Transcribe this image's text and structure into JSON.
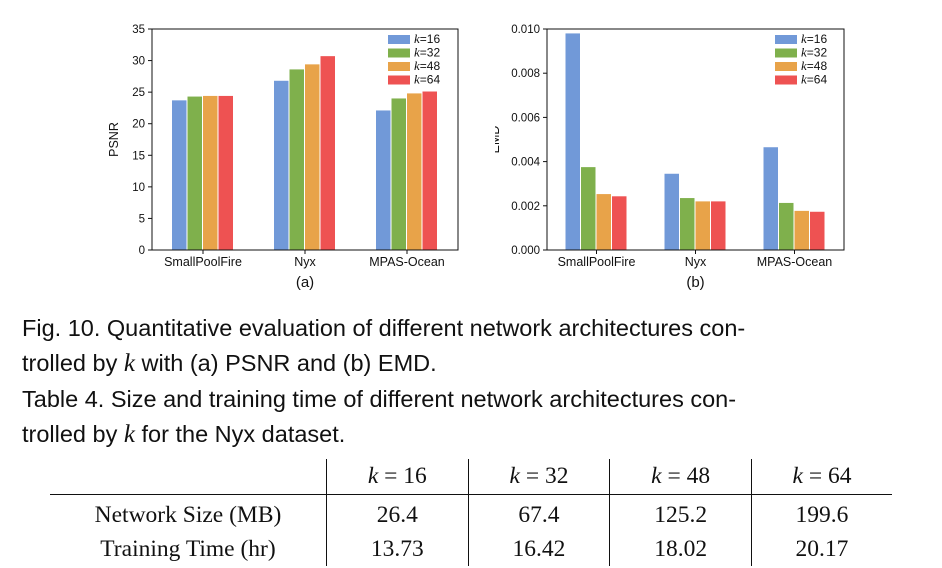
{
  "colors": {
    "k16": "#7199d8",
    "k32": "#7fb04c",
    "k48": "#e8a349",
    "k64": "#ee5252",
    "axis": "#111111"
  },
  "chart_data": [
    {
      "type": "bar",
      "panel_label": "(a)",
      "ylabel": "PSNR",
      "ylim": [
        0,
        35
      ],
      "yticks": [
        "0",
        "5",
        "10",
        "15",
        "20",
        "25",
        "30",
        "35"
      ],
      "ytick_values": [
        0,
        5,
        10,
        15,
        20,
        25,
        30,
        35
      ],
      "categories": [
        "SmallPoolFire",
        "Nyx",
        "MPAS-Ocean"
      ],
      "legend_position": "top-right",
      "series": [
        {
          "name": "k=16",
          "k_value": "16",
          "values": [
            23.7,
            26.8,
            22.1
          ]
        },
        {
          "name": "k=32",
          "k_value": "32",
          "values": [
            24.3,
            28.6,
            24.0
          ]
        },
        {
          "name": "k=48",
          "k_value": "48",
          "values": [
            24.4,
            29.4,
            24.8
          ]
        },
        {
          "name": "k=64",
          "k_value": "64",
          "values": [
            24.4,
            30.7,
            25.1
          ]
        }
      ]
    },
    {
      "type": "bar",
      "panel_label": "(b)",
      "ylabel": "EMD",
      "ylim": [
        0,
        0.01
      ],
      "yticks": [
        "0.000",
        "0.002",
        "0.004",
        "0.006",
        "0.008",
        "0.010"
      ],
      "ytick_values": [
        0,
        0.002,
        0.004,
        0.006,
        0.008,
        0.01
      ],
      "categories": [
        "SmallPoolFire",
        "Nyx",
        "MPAS-Ocean"
      ],
      "legend_position": "top-right",
      "series": [
        {
          "name": "k=16",
          "k_value": "16",
          "values": [
            0.0098,
            0.00345,
            0.00465
          ]
        },
        {
          "name": "k=32",
          "k_value": "32",
          "values": [
            0.00375,
            0.00235,
            0.00213
          ]
        },
        {
          "name": "k=48",
          "k_value": "48",
          "values": [
            0.00253,
            0.0022,
            0.00177
          ]
        },
        {
          "name": "k=64",
          "k_value": "64",
          "values": [
            0.00243,
            0.0022,
            0.00173
          ]
        }
      ]
    }
  ],
  "figure_caption": {
    "prefix": "Fig. 10.  Quantitative evaluation of different network architectures con-",
    "line2_start": "trolled by ",
    "k": "k",
    "line2_end": " with (a) PSNR and (b) EMD."
  },
  "table_caption": {
    "prefix": "Table 4.  Size and training time of different network architectures con-",
    "line2_start": "trolled by ",
    "k": "k",
    "line2_end": " for the Nyx dataset."
  },
  "table": {
    "headers": [
      {
        "k": "k",
        "eq": " = 16"
      },
      {
        "k": "k",
        "eq": " = 32"
      },
      {
        "k": "k",
        "eq": " = 48"
      },
      {
        "k": "k",
        "eq": " = 64"
      }
    ],
    "rows": [
      {
        "label": "Network Size (MB)",
        "values": [
          "26.4",
          "67.4",
          "125.2",
          "199.6"
        ]
      },
      {
        "label": "Training Time (hr)",
        "values": [
          "13.73",
          "16.42",
          "18.02",
          "20.17"
        ]
      }
    ]
  }
}
